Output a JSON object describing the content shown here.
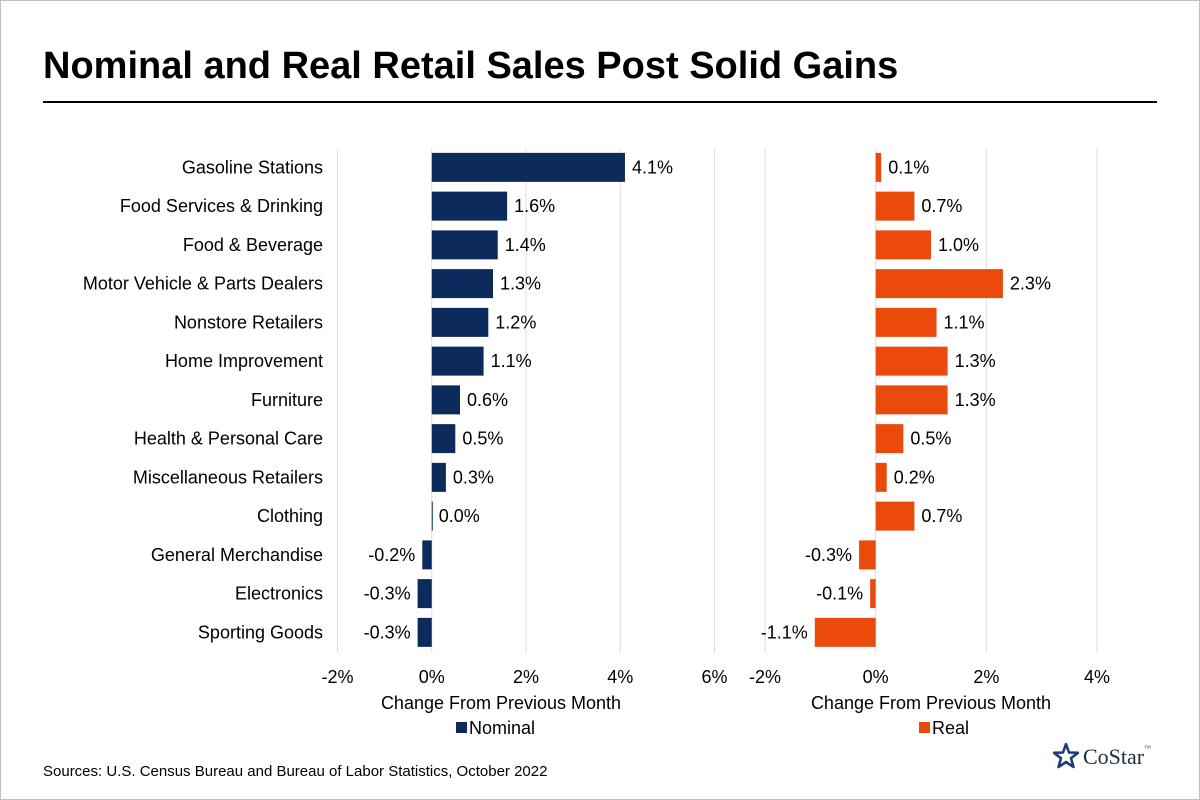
{
  "title": "Nominal and Real Retail Sales Post Solid Gains",
  "source": "Sources: U.S. Census Bureau and Bureau of Labor Statistics, October 2022",
  "logo": {
    "name": "CoStar",
    "tm": "™"
  },
  "chart_data": [
    {
      "type": "bar",
      "orientation": "horizontal",
      "categories": [
        "Gasoline Stations",
        "Food Services & Drinking",
        "Food & Beverage",
        "Motor Vehicle & Parts Dealers",
        "Nonstore Retailers",
        "Home Improvement",
        "Furniture",
        "Health & Personal Care",
        "Miscellaneous Retailers",
        "Clothing",
        "General Merchandise",
        "Electronics",
        "Sporting Goods"
      ],
      "series": [
        {
          "name": "Nominal",
          "color": "#0c2a5b",
          "values": [
            4.1,
            1.6,
            1.4,
            1.3,
            1.2,
            1.1,
            0.6,
            0.5,
            0.3,
            0.0,
            -0.2,
            -0.3,
            -0.3
          ]
        }
      ],
      "data_labels": [
        "4.1%",
        "1.6%",
        "1.4%",
        "1.3%",
        "1.2%",
        "1.1%",
        "0.6%",
        "0.5%",
        "0.3%",
        "0.0%",
        "-0.2%",
        "-0.3%",
        "-0.3%"
      ],
      "xlabel": "Change From Previous Month",
      "xlim": [
        -2,
        6
      ],
      "xticks": [
        -2,
        0,
        2,
        4,
        6
      ],
      "xtick_labels": [
        "-2%",
        "0%",
        "2%",
        "4%",
        "6%"
      ],
      "grid": "vertical",
      "legend": "bottom"
    },
    {
      "type": "bar",
      "orientation": "horizontal",
      "categories": [
        "Gasoline Stations",
        "Food Services & Drinking",
        "Food & Beverage",
        "Motor Vehicle & Parts Dealers",
        "Nonstore Retailers",
        "Home Improvement",
        "Furniture",
        "Health & Personal Care",
        "Miscellaneous Retailers",
        "Clothing",
        "General Merchandise",
        "Electronics",
        "Sporting Goods"
      ],
      "series": [
        {
          "name": "Real",
          "color": "#ea4a0c",
          "values": [
            0.1,
            0.7,
            1.0,
            2.3,
            1.1,
            1.3,
            1.3,
            0.5,
            0.2,
            0.7,
            -0.3,
            -0.1,
            -1.1
          ]
        }
      ],
      "data_labels": [
        "0.1%",
        "0.7%",
        "1.0%",
        "2.3%",
        "1.1%",
        "1.3%",
        "1.3%",
        "0.5%",
        "0.2%",
        "0.7%",
        "-0.3%",
        "-0.1%",
        "-1.1%"
      ],
      "xlabel": "Change From Previous Month",
      "xlim": [
        -2,
        4
      ],
      "xticks": [
        -2,
        0,
        2,
        4
      ],
      "xtick_labels": [
        "-2%",
        "0%",
        "2%",
        "4%"
      ],
      "grid": "vertical",
      "legend": "bottom"
    }
  ]
}
